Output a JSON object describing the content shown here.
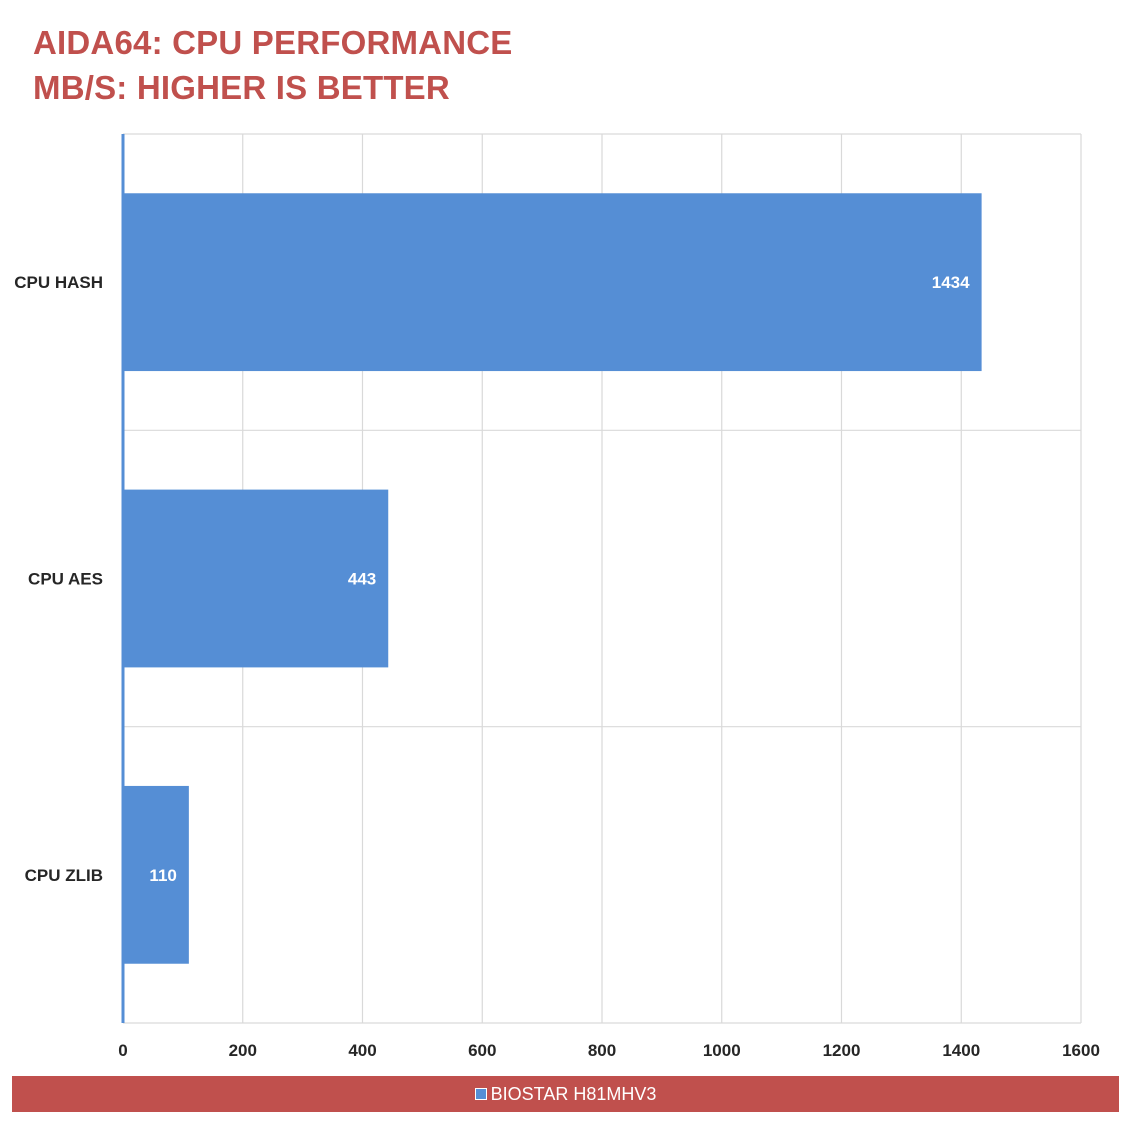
{
  "chart_data": {
    "type": "bar",
    "orientation": "horizontal",
    "title": "AIDA64: CPU PERFORMANCE",
    "subtitle": "MB/S: HIGHER IS BETTER",
    "categories": [
      "CPU HASH",
      "CPU AES",
      "CPU ZLIB"
    ],
    "series": [
      {
        "name": "BIOSTAR H81MHV3",
        "values": [
          1434,
          443,
          110
        ],
        "color": "#558ed5"
      }
    ],
    "xlim": [
      0,
      1600
    ],
    "xticks": [
      0,
      200,
      400,
      600,
      800,
      1000,
      1200,
      1400,
      1600
    ],
    "grid": true,
    "data_labels": true,
    "legend_position": "bottom"
  },
  "colors": {
    "title": "#c0504d",
    "legend_band": "#c0504d",
    "bar": "#558ed5",
    "grid": "#d9d9d9",
    "axis": "#558ed5"
  }
}
